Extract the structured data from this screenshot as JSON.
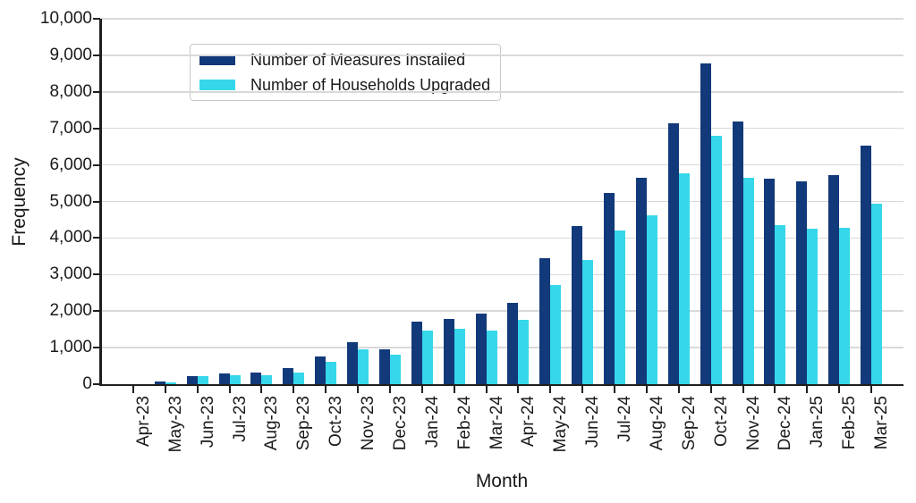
{
  "chart_data": {
    "type": "bar",
    "title": "",
    "xlabel": "Month",
    "ylabel": "Frequency",
    "categories": [
      "Apr-23",
      "May-23",
      "Jun-23",
      "Jul-23",
      "Aug-23",
      "Sep-23",
      "Oct-23",
      "Nov-23",
      "Dec-23",
      "Jan-24",
      "Feb-24",
      "Mar-24",
      "Apr-24",
      "May-24",
      "Jun-24",
      "Jul-24",
      "Aug-24",
      "Sep-24",
      "Oct-24",
      "Nov-24",
      "Dec-24",
      "Jan-25",
      "Feb-25",
      "Mar-25"
    ],
    "series": [
      {
        "name": "Number of Measures Installed",
        "color": "#12397a",
        "values": [
          10,
          80,
          230,
          300,
          320,
          430,
          760,
          1150,
          950,
          1720,
          1780,
          1930,
          2230,
          3450,
          4320,
          5240,
          5650,
          7150,
          8770,
          7200,
          5620,
          5550,
          5710,
          6520
        ]
      },
      {
        "name": "Number of Households Upgraded",
        "color": "#36d7ea",
        "values": [
          5,
          55,
          210,
          245,
          255,
          330,
          620,
          950,
          800,
          1470,
          1520,
          1470,
          1770,
          2720,
          3400,
          4200,
          4620,
          5770,
          6800,
          5660,
          4360,
          4250,
          4290,
          4940
        ]
      }
    ],
    "ylim": [
      0,
      10000
    ],
    "ytick_step": 1000,
    "ytick_labels": [
      "0",
      "1,000",
      "2,000",
      "3,000",
      "4,000",
      "5,000",
      "6,000",
      "7,000",
      "8,000",
      "9,000",
      "10,000"
    ],
    "grid": "horizontal",
    "legend_position": "top-left",
    "x_label_rotation": -90
  },
  "colors": {
    "measures_bar": "#12397a",
    "households_bar": "#36d7ea",
    "gridline": "#d9d9d9",
    "axis": "#1f1f1f",
    "text": "#1a1a1a",
    "legend_border": "#c9c9c9",
    "background": "#ffffff"
  }
}
